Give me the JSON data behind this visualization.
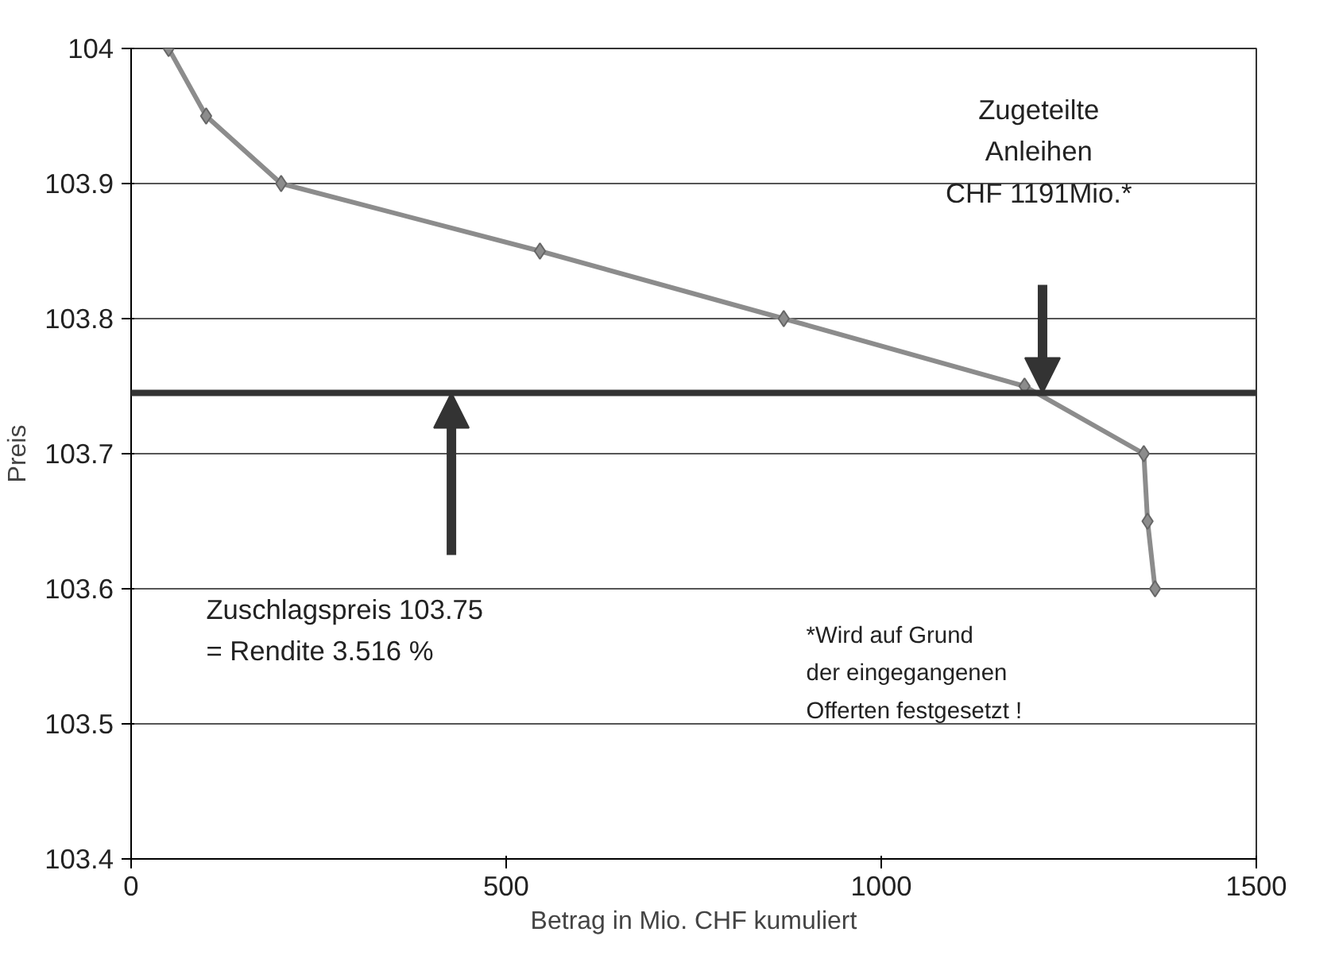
{
  "chart_data": {
    "type": "line",
    "xlabel": "Betrag in Mio. CHF kumuliert",
    "ylabel": "Preis",
    "x": [
      50,
      100,
      200,
      545,
      870,
      1191,
      1350,
      1355,
      1365
    ],
    "series": [
      {
        "color": "#8c8c8c",
        "values": [
          104,
          103.95,
          103.9,
          103.85,
          103.8,
          103.75,
          103.7,
          103.65,
          103.6
        ]
      }
    ],
    "xlim": [
      0,
      1500
    ],
    "ylim": [
      103.4,
      104
    ],
    "xticks": [
      0,
      500,
      1000,
      1500
    ],
    "yticks": [
      103.4,
      103.5,
      103.6,
      103.7,
      103.8,
      103.9,
      104
    ],
    "grid": "y",
    "marker": "diamond",
    "line_style": "solid",
    "ref_lines": [
      {
        "axis": "y",
        "value": 103.745,
        "color": "#333333"
      }
    ],
    "annotations": [
      "Zugeteilte\nAnleihen\nCHF 1191Mio.*",
      "Zuschlagspreis 103.75\n= Rendite 3.516 %",
      "*Wird auf Grund\nder eingegangenen\nOfferten festgesetzt !"
    ]
  }
}
